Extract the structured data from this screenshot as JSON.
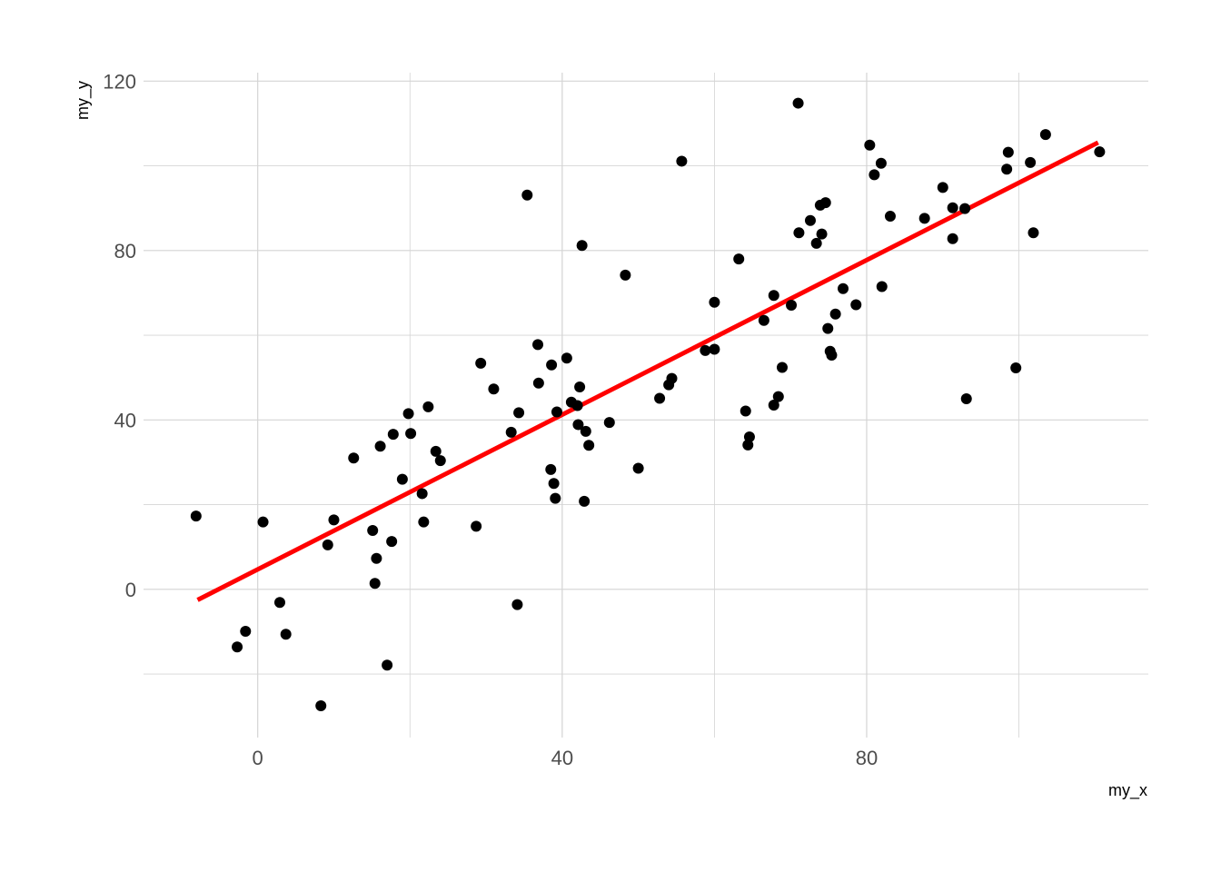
{
  "chart_data": {
    "type": "scatter",
    "xlabel": "my_x",
    "ylabel": "my_y",
    "xlim": [
      -15,
      117
    ],
    "ylim": [
      -35,
      122
    ],
    "x_ticks": [
      0,
      40,
      80
    ],
    "y_ticks": [
      0,
      40,
      80,
      120
    ],
    "grid": true,
    "legend": "none",
    "colors": {
      "points": "#000000",
      "trend_line": "#ff0000",
      "grid": "#d4d4d4",
      "tick_text": "#4d4d4d"
    },
    "points": [
      {
        "x": -8.1,
        "y": 17.3
      },
      {
        "x": -2.7,
        "y": -13.6
      },
      {
        "x": -1.6,
        "y": -9.9
      },
      {
        "x": 0.7,
        "y": 15.9
      },
      {
        "x": 2.9,
        "y": -3.1
      },
      {
        "x": 3.7,
        "y": -10.6
      },
      {
        "x": 8.3,
        "y": -27.5
      },
      {
        "x": 9.2,
        "y": 10.5
      },
      {
        "x": 10.0,
        "y": 16.4
      },
      {
        "x": 12.6,
        "y": 31.0
      },
      {
        "x": 15.1,
        "y": 13.9
      },
      {
        "x": 15.4,
        "y": 1.4
      },
      {
        "x": 15.6,
        "y": 7.3
      },
      {
        "x": 16.1,
        "y": 33.8
      },
      {
        "x": 17.0,
        "y": -17.9
      },
      {
        "x": 17.6,
        "y": 11.3
      },
      {
        "x": 17.8,
        "y": 36.6
      },
      {
        "x": 19.0,
        "y": 26.0
      },
      {
        "x": 19.8,
        "y": 41.5
      },
      {
        "x": 20.1,
        "y": 36.8
      },
      {
        "x": 21.6,
        "y": 22.6
      },
      {
        "x": 21.8,
        "y": 15.9
      },
      {
        "x": 22.4,
        "y": 43.1
      },
      {
        "x": 23.4,
        "y": 32.6
      },
      {
        "x": 24.0,
        "y": 30.4
      },
      {
        "x": 28.7,
        "y": 14.9
      },
      {
        "x": 29.3,
        "y": 53.4
      },
      {
        "x": 31.0,
        "y": 47.3
      },
      {
        "x": 33.3,
        "y": 37.1
      },
      {
        "x": 34.1,
        "y": -3.6
      },
      {
        "x": 34.3,
        "y": 41.7
      },
      {
        "x": 35.4,
        "y": 93.1
      },
      {
        "x": 36.8,
        "y": 57.8
      },
      {
        "x": 36.9,
        "y": 48.7
      },
      {
        "x": 38.5,
        "y": 28.3
      },
      {
        "x": 38.6,
        "y": 53.0
      },
      {
        "x": 38.9,
        "y": 25.0
      },
      {
        "x": 39.1,
        "y": 21.5
      },
      {
        "x": 39.3,
        "y": 41.9
      },
      {
        "x": 40.6,
        "y": 54.6
      },
      {
        "x": 41.2,
        "y": 44.2
      },
      {
        "x": 42.0,
        "y": 43.4
      },
      {
        "x": 42.1,
        "y": 38.9
      },
      {
        "x": 42.3,
        "y": 47.8
      },
      {
        "x": 42.6,
        "y": 81.2
      },
      {
        "x": 42.9,
        "y": 20.8
      },
      {
        "x": 43.1,
        "y": 37.3
      },
      {
        "x": 43.5,
        "y": 34.0
      },
      {
        "x": 46.2,
        "y": 39.4
      },
      {
        "x": 48.3,
        "y": 74.2
      },
      {
        "x": 50.0,
        "y": 28.6
      },
      {
        "x": 52.8,
        "y": 45.1
      },
      {
        "x": 54.0,
        "y": 48.3
      },
      {
        "x": 54.4,
        "y": 49.8
      },
      {
        "x": 55.7,
        "y": 101.1
      },
      {
        "x": 58.8,
        "y": 56.4
      },
      {
        "x": 60.0,
        "y": 56.7
      },
      {
        "x": 60.0,
        "y": 67.8
      },
      {
        "x": 63.2,
        "y": 78.0
      },
      {
        "x": 64.1,
        "y": 42.1
      },
      {
        "x": 64.4,
        "y": 34.1
      },
      {
        "x": 64.6,
        "y": 36.0
      },
      {
        "x": 66.5,
        "y": 63.5
      },
      {
        "x": 67.8,
        "y": 43.5
      },
      {
        "x": 67.8,
        "y": 69.4
      },
      {
        "x": 68.4,
        "y": 45.5
      },
      {
        "x": 68.9,
        "y": 52.4
      },
      {
        "x": 70.1,
        "y": 67.1
      },
      {
        "x": 71.0,
        "y": 114.8
      },
      {
        "x": 71.1,
        "y": 84.2
      },
      {
        "x": 72.6,
        "y": 87.1
      },
      {
        "x": 73.4,
        "y": 81.7
      },
      {
        "x": 73.9,
        "y": 90.7
      },
      {
        "x": 74.1,
        "y": 83.9
      },
      {
        "x": 74.6,
        "y": 91.3
      },
      {
        "x": 74.9,
        "y": 61.6
      },
      {
        "x": 75.2,
        "y": 56.2
      },
      {
        "x": 75.4,
        "y": 55.3
      },
      {
        "x": 75.9,
        "y": 65.0
      },
      {
        "x": 76.9,
        "y": 71.0
      },
      {
        "x": 78.6,
        "y": 67.2
      },
      {
        "x": 80.4,
        "y": 104.9
      },
      {
        "x": 81.0,
        "y": 97.9
      },
      {
        "x": 81.9,
        "y": 100.6
      },
      {
        "x": 82.0,
        "y": 71.5
      },
      {
        "x": 83.1,
        "y": 88.1
      },
      {
        "x": 87.6,
        "y": 87.6
      },
      {
        "x": 90.0,
        "y": 94.9
      },
      {
        "x": 91.3,
        "y": 90.1
      },
      {
        "x": 91.3,
        "y": 82.8
      },
      {
        "x": 92.9,
        "y": 89.9
      },
      {
        "x": 93.1,
        "y": 45.0
      },
      {
        "x": 98.4,
        "y": 99.2
      },
      {
        "x": 98.6,
        "y": 103.2
      },
      {
        "x": 99.6,
        "y": 52.3
      },
      {
        "x": 101.5,
        "y": 100.8
      },
      {
        "x": 101.9,
        "y": 84.2
      },
      {
        "x": 103.5,
        "y": 107.4
      },
      {
        "x": 110.6,
        "y": 103.3
      }
    ],
    "trend_line": {
      "x": [
        -7.9,
        110.4
      ],
      "y": [
        -2.5,
        105.5
      ]
    }
  }
}
